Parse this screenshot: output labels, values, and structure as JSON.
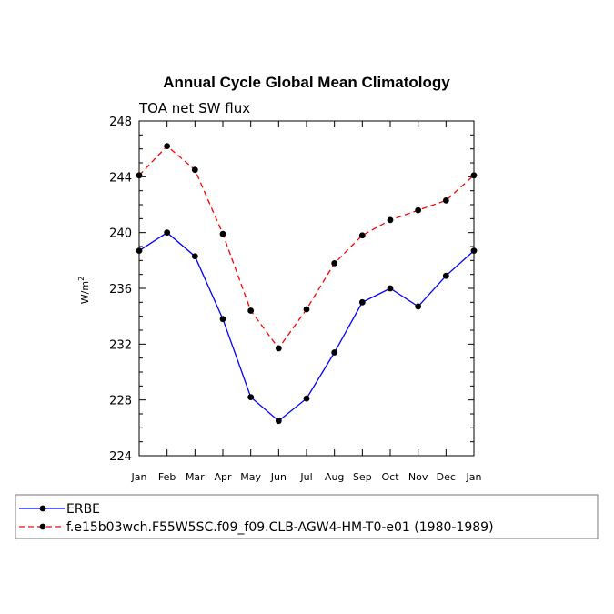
{
  "chart_data": {
    "type": "line",
    "title": "Annual Cycle Global Mean Climatology",
    "subtitle": "TOA net SW flux",
    "ylabel_text": "W/m",
    "ylabel_superscript": "2",
    "xlabel": "",
    "categories": [
      "Jan",
      "Feb",
      "Mar",
      "Apr",
      "May",
      "Jun",
      "Jul",
      "Aug",
      "Sep",
      "Oct",
      "Nov",
      "Dec",
      "Jan"
    ],
    "ylim": [
      224,
      248
    ],
    "yticks": [
      224,
      228,
      232,
      236,
      240,
      244,
      248
    ],
    "yticks_minor_step": 1,
    "grid": false,
    "legend_position": "bottom",
    "series": [
      {
        "name": "ERBE",
        "color": "#0000ff",
        "dash": "solid",
        "values": [
          238.7,
          240.0,
          238.3,
          233.8,
          228.2,
          226.5,
          228.1,
          231.4,
          235.0,
          236.0,
          234.7,
          236.9,
          238.7
        ]
      },
      {
        "name": "f.e15b03wch.F55W5SC.f09_f09.CLB-AGW4-HM-T0-e01 (1980-1989)",
        "color": "#ff0000",
        "dash": "dashed",
        "values": [
          244.1,
          246.2,
          244.5,
          239.9,
          234.4,
          231.7,
          234.5,
          237.8,
          239.8,
          240.9,
          241.6,
          242.3,
          244.1
        ]
      }
    ]
  }
}
